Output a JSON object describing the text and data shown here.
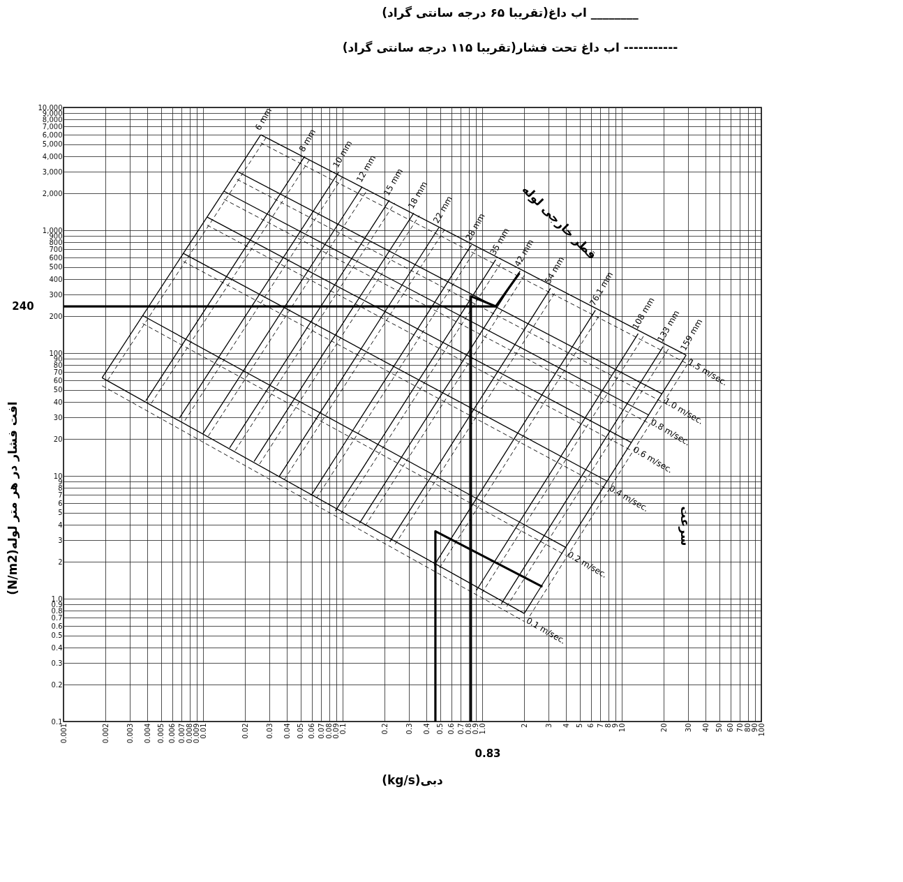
{
  "chart_data": {
    "type": "line",
    "xlabel": "(kg/s)دبی",
    "ylabel": "(N/m2)افت فشار در هر متر لوله",
    "log": "xy",
    "grid": true,
    "line_style": "solid",
    "xlim": [
      0.001,
      100
    ],
    "ylim": [
      0.1,
      10000
    ],
    "xticks": [
      0.001,
      0.002,
      0.003,
      0.004,
      0.005,
      0.006,
      0.007,
      0.008,
      0.009,
      0.01,
      0.02,
      0.03,
      0.04,
      0.05,
      0.06,
      0.07,
      0.08,
      0.09,
      0.1,
      0.2,
      0.3,
      0.4,
      0.5,
      0.6,
      0.7,
      0.8,
      0.9,
      {
        "value": 1,
        "label": "1.0"
      },
      2,
      3,
      4,
      5,
      6,
      7,
      8,
      9,
      10,
      20,
      30,
      40,
      50,
      60,
      70,
      80,
      90,
      100
    ],
    "yticks": [
      0.1,
      0.2,
      0.3,
      0.4,
      0.5,
      0.6,
      0.7,
      0.8,
      0.9,
      {
        "value": 1,
        "label": "1.0"
      },
      2,
      3,
      4,
      5,
      6,
      7,
      8,
      9,
      10,
      20,
      30,
      40,
      50,
      60,
      70,
      80,
      90,
      100,
      200,
      300,
      400,
      500,
      600,
      700,
      800,
      900,
      {
        "value": 1000,
        "label": "1,000"
      },
      {
        "value": 2000,
        "label": "2,000"
      },
      {
        "value": 3000,
        "label": "3,000"
      },
      {
        "value": 4000,
        "label": "4,000"
      },
      {
        "value": 5000,
        "label": "5,000"
      },
      {
        "value": 6000,
        "label": "6,000"
      },
      {
        "value": 7000,
        "label": "7,000"
      },
      {
        "value": 8000,
        "label": "8,000"
      },
      {
        "value": 9000,
        "label": "9,000"
      },
      {
        "value": 10000,
        "label": "10,000"
      }
    ],
    "annotations": [
      "اب داغ(تقریبا ۶۵ درجه سانتی گراد) ________",
      "اب داغ تحت فشار(تقریبا ۱۱۵ درجه سانتی گراد) -----------",
      "قطر خارجی لوله",
      "سرعت",
      "240",
      "0.83"
    ],
    "series": [
      {
        "name": "6 mm",
        "color": "#000000",
        "x": [
          0.00189,
          0.0259
        ],
        "values": [
          62.9,
          5990
        ]
      },
      {
        "color": "#000000",
        "line_style": "dashed",
        "x": [
          0.00207,
          0.0283
        ],
        "values": [
          59.9,
          5690
        ]
      },
      {
        "name": "8 mm",
        "color": "#000000",
        "x": [
          0.00389,
          0.0535
        ],
        "values": [
          40.9,
          4010
        ]
      },
      {
        "color": "#000000",
        "line_style": "dashed",
        "x": [
          0.00425,
          0.0585
        ],
        "values": [
          38.9,
          3820
        ]
      },
      {
        "name": "10 mm",
        "color": "#000000",
        "x": [
          0.00677,
          0.0935
        ],
        "values": [
          29.6,
          2970
        ]
      },
      {
        "color": "#000000",
        "line_style": "dashed",
        "x": [
          0.0074,
          0.102
        ],
        "values": [
          28.2,
          2830
        ]
      },
      {
        "name": "12 mm",
        "color": "#000000",
        "x": [
          0.00998,
          0.138
        ],
        "values": [
          22.1,
          2260
        ]
      },
      {
        "color": "#000000",
        "line_style": "dashed",
        "x": [
          0.0109,
          0.151
        ],
        "values": [
          21.1,
          2150
        ]
      },
      {
        "name": "15 mm",
        "color": "#000000",
        "x": [
          0.0155,
          0.216
        ],
        "values": [
          16.9,
          1760
        ]
      },
      {
        "color": "#000000",
        "line_style": "dashed",
        "x": [
          0.017,
          0.236
        ],
        "values": [
          16.1,
          1670
        ]
      },
      {
        "name": "18 mm",
        "color": "#000000",
        "x": [
          0.0232,
          0.323
        ],
        "values": [
          13.1,
          1380
        ]
      },
      {
        "color": "#000000",
        "line_style": "dashed",
        "x": [
          0.0254,
          0.354
        ],
        "values": [
          12.5,
          1320
        ]
      },
      {
        "name": "22 mm",
        "color": "#000000",
        "x": [
          0.0349,
          0.489
        ],
        "values": [
          9.8,
          1050
        ]
      },
      {
        "color": "#000000",
        "line_style": "dashed",
        "x": [
          0.0382,
          0.535
        ],
        "values": [
          9.32,
          1000
        ]
      },
      {
        "name": "28 mm",
        "color": "#000000",
        "x": [
          0.0595,
          0.836
        ],
        "values": [
          6.92,
          759
        ]
      },
      {
        "color": "#000000",
        "line_style": "dashed",
        "x": [
          0.065,
          0.914
        ],
        "values": [
          6.58,
          722
        ]
      },
      {
        "name": "35 mm",
        "color": "#000000",
        "x": [
          0.0887,
          1.25
        ],
        "values": [
          5.17,
          577
        ]
      },
      {
        "color": "#000000",
        "line_style": "dashed",
        "x": [
          0.097,
          1.37
        ],
        "values": [
          4.92,
          548
        ]
      },
      {
        "name": "42 mm",
        "color": "#000000",
        "x": [
          0.132,
          1.87
        ],
        "values": [
          4.11,
          466
        ]
      },
      {
        "color": "#000000",
        "line_style": "dashed",
        "x": [
          0.145,
          2.04
        ],
        "values": [
          3.91,
          443
        ]
      },
      {
        "name": "54 mm",
        "color": "#000000",
        "x": [
          0.218,
          3.09
        ],
        "values": [
          2.91,
          337
        ]
      },
      {
        "color": "#000000",
        "line_style": "dashed",
        "x": [
          0.238,
          3.38
        ],
        "values": [
          2.77,
          320
        ]
      },
      {
        "name": "76.1 mm",
        "color": "#000000",
        "x": [
          0.453,
          6.47
        ],
        "values": [
          1.87,
          223
        ]
      },
      {
        "color": "#000000",
        "line_style": "dashed",
        "x": [
          0.495,
          7.07
        ],
        "values": [
          1.78,
          212
        ]
      },
      {
        "name": "108 mm",
        "color": "#000000",
        "x": [
          0.91,
          13.1
        ],
        "values": [
          1.17,
          144
        ]
      },
      {
        "color": "#000000",
        "line_style": "dashed",
        "x": [
          0.995,
          14.3
        ],
        "values": [
          1.11,
          137
        ]
      },
      {
        "name": "133 mm",
        "color": "#000000",
        "x": [
          1.37,
          19.8
        ],
        "values": [
          0.908,
          113
        ]
      },
      {
        "color": "#000000",
        "line_style": "dashed",
        "x": [
          1.5,
          21.6
        ],
        "values": [
          0.863,
          108
        ]
      },
      {
        "name": "159 mm",
        "color": "#000000",
        "x": [
          2.0,
          28.9
        ],
        "values": [
          0.759,
          96.3
        ]
      },
      {
        "color": "#000000",
        "line_style": "dashed",
        "x": [
          2.19,
          31.6
        ],
        "values": [
          0.722,
          91.6
        ]
      },
      {
        "name": "1.5 m/sec.",
        "color": "#000000",
        "x": [
          0.0259,
          28.9
        ],
        "values": [
          5990,
          96.3
        ]
      },
      {
        "color": "#000000",
        "line_style": "dashed",
        "x": [
          0.0259,
          28.9
        ],
        "values": [
          5150,
          82.9
        ]
      },
      {
        "name": "1.0 m/sec.",
        "color": "#000000",
        "x": [
          0.0175,
          19.4
        ],
        "values": [
          3020,
          46.6
        ]
      },
      {
        "color": "#000000",
        "line_style": "dashed",
        "x": [
          0.0175,
          19.4
        ],
        "values": [
          2600,
          40.1
        ]
      },
      {
        "name": "0.8 m/sec.",
        "color": "#000000",
        "x": [
          0.0141,
          15.6
        ],
        "values": [
          2080,
          31.3
        ]
      },
      {
        "color": "#000000",
        "line_style": "dashed",
        "x": [
          0.0141,
          15.6
        ],
        "values": [
          1790,
          26.9
        ]
      },
      {
        "name": "0.6 m/sec.",
        "color": "#000000",
        "x": [
          0.0107,
          11.7
        ],
        "values": [
          1280,
          18.7
        ]
      },
      {
        "color": "#000000",
        "line_style": "dashed",
        "x": [
          0.0107,
          11.7
        ],
        "values": [
          1100,
          16.1
        ]
      },
      {
        "name": "0.4 m/sec.",
        "color": "#000000",
        "x": [
          0.00722,
          7.85
        ],
        "values": [
          648,
          9.06
        ]
      },
      {
        "color": "#000000",
        "line_style": "dashed",
        "x": [
          0.00722,
          7.85
        ],
        "values": [
          558,
          7.8
        ]
      },
      {
        "name": "0.2 m/sec.",
        "color": "#000000",
        "x": [
          0.00369,
          3.96
        ],
        "values": [
          202,
          2.62
        ]
      },
      {
        "color": "#000000",
        "line_style": "dashed",
        "x": [
          0.00369,
          3.96
        ],
        "values": [
          174,
          2.26
        ]
      },
      {
        "name": "0.1 m/sec.",
        "color": "#000000",
        "x": [
          0.00189,
          2.0
        ],
        "values": [
          62.9,
          0.759
        ]
      },
      {
        "color": "#000000",
        "line_style": "dashed",
        "x": [
          0.00189,
          2.0
        ],
        "values": [
          54.2,
          0.653
        ]
      },
      {
        "color": "#000000",
        "x": [
          0.001,
          1.25
        ],
        "values": [
          240,
          240
        ]
      },
      {
        "color": "#000000",
        "x": [
          0.83,
          0.83,
          1.25,
          1.85
        ],
        "values": [
          0.1,
          290,
          240,
          449
        ]
      },
      {
        "color": "#000000",
        "x": [
          0.462,
          0.462,
          2.7
        ],
        "values": [
          0.1,
          3.54,
          1.25
        ]
      }
    ]
  }
}
